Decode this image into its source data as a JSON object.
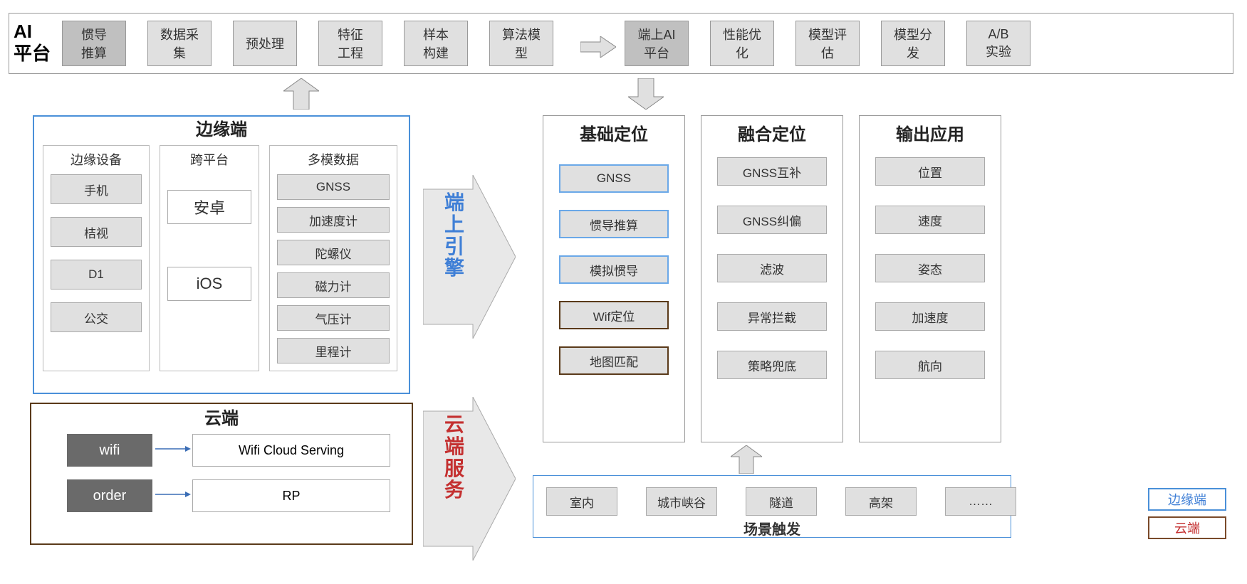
{
  "ai_platform": {
    "label_line1": "AI",
    "label_line2": "平台",
    "steps": [
      {
        "label": "惯导\n推算",
        "dark": true
      },
      {
        "label": "数据采\n集"
      },
      {
        "label": "预处理"
      },
      {
        "label": "特征\n工程"
      },
      {
        "label": "样本\n构建"
      },
      {
        "label": "算法模\n型"
      }
    ],
    "steps2": [
      {
        "label": "端上AI\n平台",
        "dark": true
      },
      {
        "label": "性能优\n化"
      },
      {
        "label": "模型评\n估"
      },
      {
        "label": "模型分\n发"
      },
      {
        "label": "A/B\n实验"
      }
    ]
  },
  "edge": {
    "title": "边缘端",
    "cols": [
      {
        "title": "边缘设备",
        "items": [
          "手机",
          "桔视",
          "D1",
          "公交"
        ]
      },
      {
        "title": "跨平台",
        "items_large": [
          "安卓",
          "iOS"
        ]
      },
      {
        "title": "多模数据",
        "items": [
          "GNSS",
          "加速度计",
          "陀螺仪",
          "磁力计",
          "气压计",
          "里程计"
        ]
      }
    ]
  },
  "cloud": {
    "title": "云端",
    "rows": [
      {
        "left": "wifi",
        "right": "Wifi Cloud Serving"
      },
      {
        "left": "order",
        "right": "RP"
      }
    ]
  },
  "engine_label": "端上引擎",
  "cloud_service_label": "云端服务",
  "positioning": {
    "base": {
      "title": "基础定位",
      "items": [
        {
          "label": "GNSS",
          "style": "blue"
        },
        {
          "label": "惯导推算",
          "style": "blue"
        },
        {
          "label": "模拟惯导",
          "style": "blue"
        },
        {
          "label": "Wif定位",
          "style": "brown"
        },
        {
          "label": "地图匹配",
          "style": "brown"
        }
      ]
    },
    "fusion": {
      "title": "融合定位",
      "items": [
        "GNSS互补",
        "GNSS纠偏",
        "滤波",
        "异常拦截",
        "策略兜底"
      ]
    },
    "output": {
      "title": "输出应用",
      "items": [
        "位置",
        "速度",
        "姿态",
        "加速度",
        "航向"
      ]
    }
  },
  "scene": {
    "title": "场景触发",
    "items": [
      "室内",
      "城市峡谷",
      "隧道",
      "高架",
      "……"
    ]
  },
  "legend": {
    "edge": "边缘端",
    "cloud": "云端"
  },
  "colors": {
    "grey_box": "#e0e0e0",
    "dark_box": "#c0c0c0",
    "border": "#999",
    "blue": "#4a90d9",
    "blue_light": "#6aa8e8",
    "brown": "#5a3a1a",
    "red": "#c43030",
    "dark_grey": "#6a6a6a"
  }
}
